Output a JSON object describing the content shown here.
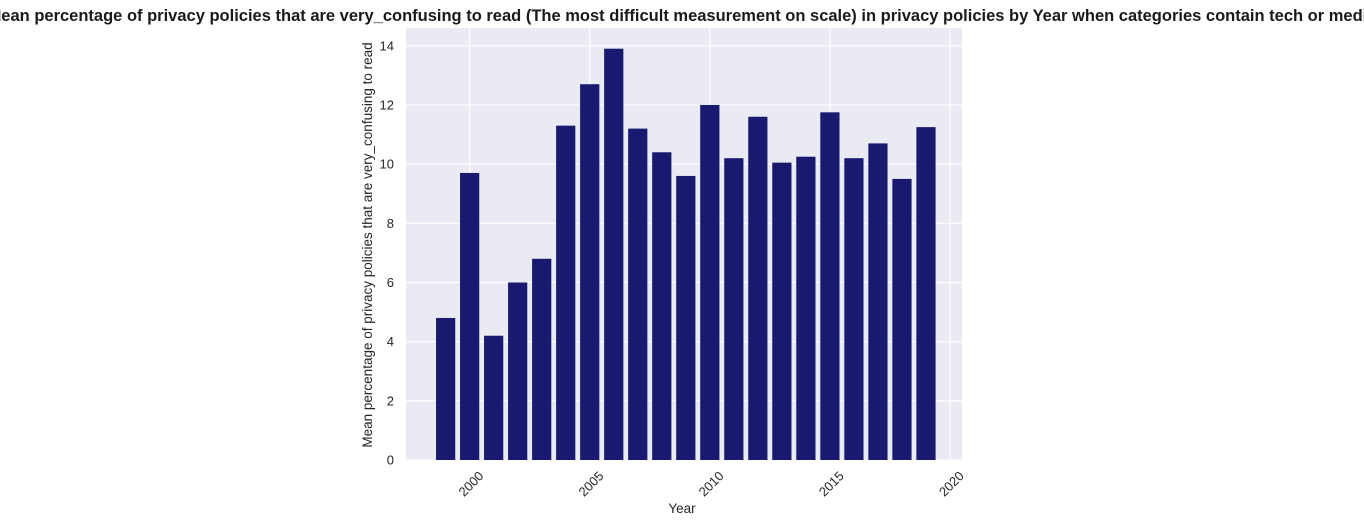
{
  "chart_data": {
    "type": "bar",
    "title": "Mean percentage of privacy policies that are very_confusing to read (The most difficult measurement on scale) in privacy policies by Year when categories contain tech or media",
    "xlabel": "Year",
    "ylabel": "Mean percentage of privacy policies that are very_confusing to read",
    "x": [
      1999,
      2000,
      2001,
      2002,
      2003,
      2004,
      2005,
      2006,
      2007,
      2008,
      2009,
      2010,
      2011,
      2012,
      2013,
      2014,
      2015,
      2016,
      2017,
      2018,
      2019
    ],
    "values": [
      4.8,
      9.7,
      4.2,
      6.0,
      6.8,
      11.3,
      12.7,
      13.9,
      11.2,
      10.4,
      9.6,
      12.0,
      10.2,
      11.6,
      10.05,
      10.25,
      11.75,
      10.2,
      10.7,
      9.5,
      11.25
    ],
    "xlim": [
      1997.35,
      2020.5
    ],
    "ylim": [
      0,
      14.6
    ],
    "xticks": [
      2000,
      2005,
      2010,
      2015,
      2020
    ],
    "xtick_labels": [
      "2000",
      "2005",
      "2010",
      "2015",
      "2020"
    ],
    "yticks": [
      0,
      2,
      4,
      6,
      8,
      10,
      12,
      14
    ],
    "ytick_labels": [
      "0",
      "2",
      "4",
      "6",
      "8",
      "10",
      "12",
      "14"
    ],
    "bar_color": "#191970",
    "plot_background": "#eaeaf2",
    "grid": true,
    "grid_color": "#ffffff"
  }
}
